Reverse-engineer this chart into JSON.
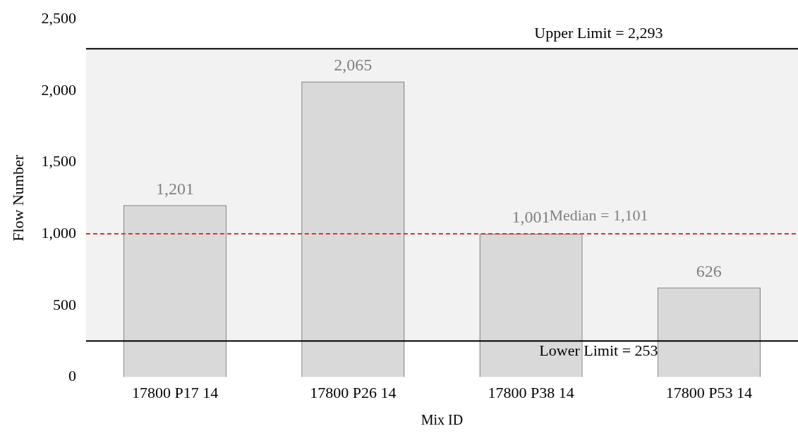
{
  "chart_data": {
    "type": "bar",
    "xlabel": "Mix ID",
    "ylabel": "Flow Number",
    "categories": [
      "17800 P17 14",
      "17800 P26 14",
      "17800 P38 14",
      "17800 P53 14"
    ],
    "values": [
      1201,
      2065,
      1001,
      626
    ],
    "color": "#d9d9d9",
    "value_labels": [
      "1,201",
      "2,065",
      "1,001",
      "626"
    ],
    "annotations": [
      "Median = 1,101"
    ],
    "ylim": [
      0,
      2500
    ],
    "yticks": [
      {
        "value": 0,
        "label": "0"
      },
      {
        "value": 500,
        "label": "500"
      },
      {
        "value": 1000,
        "label": "1,000"
      },
      {
        "value": 1500,
        "label": "1,500"
      },
      {
        "value": 2000,
        "label": "2,000"
      },
      {
        "value": 2500,
        "label": "2,500"
      }
    ],
    "grid": false,
    "legend": false,
    "bands": [
      {
        "axis": "y",
        "from": 253,
        "to": 2293,
        "color": "#f2f2f2"
      }
    ],
    "ref_lines": [
      {
        "axis": "y",
        "value": 2293,
        "label": "Upper Limit = 2,293",
        "color": "#000000",
        "line_style": "solid"
      },
      {
        "axis": "y",
        "value": 253,
        "label": "Lower Limit = 253",
        "color": "#000000",
        "line_style": "solid"
      },
      {
        "axis": "y",
        "value": 1001,
        "color": "#e03030",
        "line_style": "dashed"
      }
    ]
  }
}
